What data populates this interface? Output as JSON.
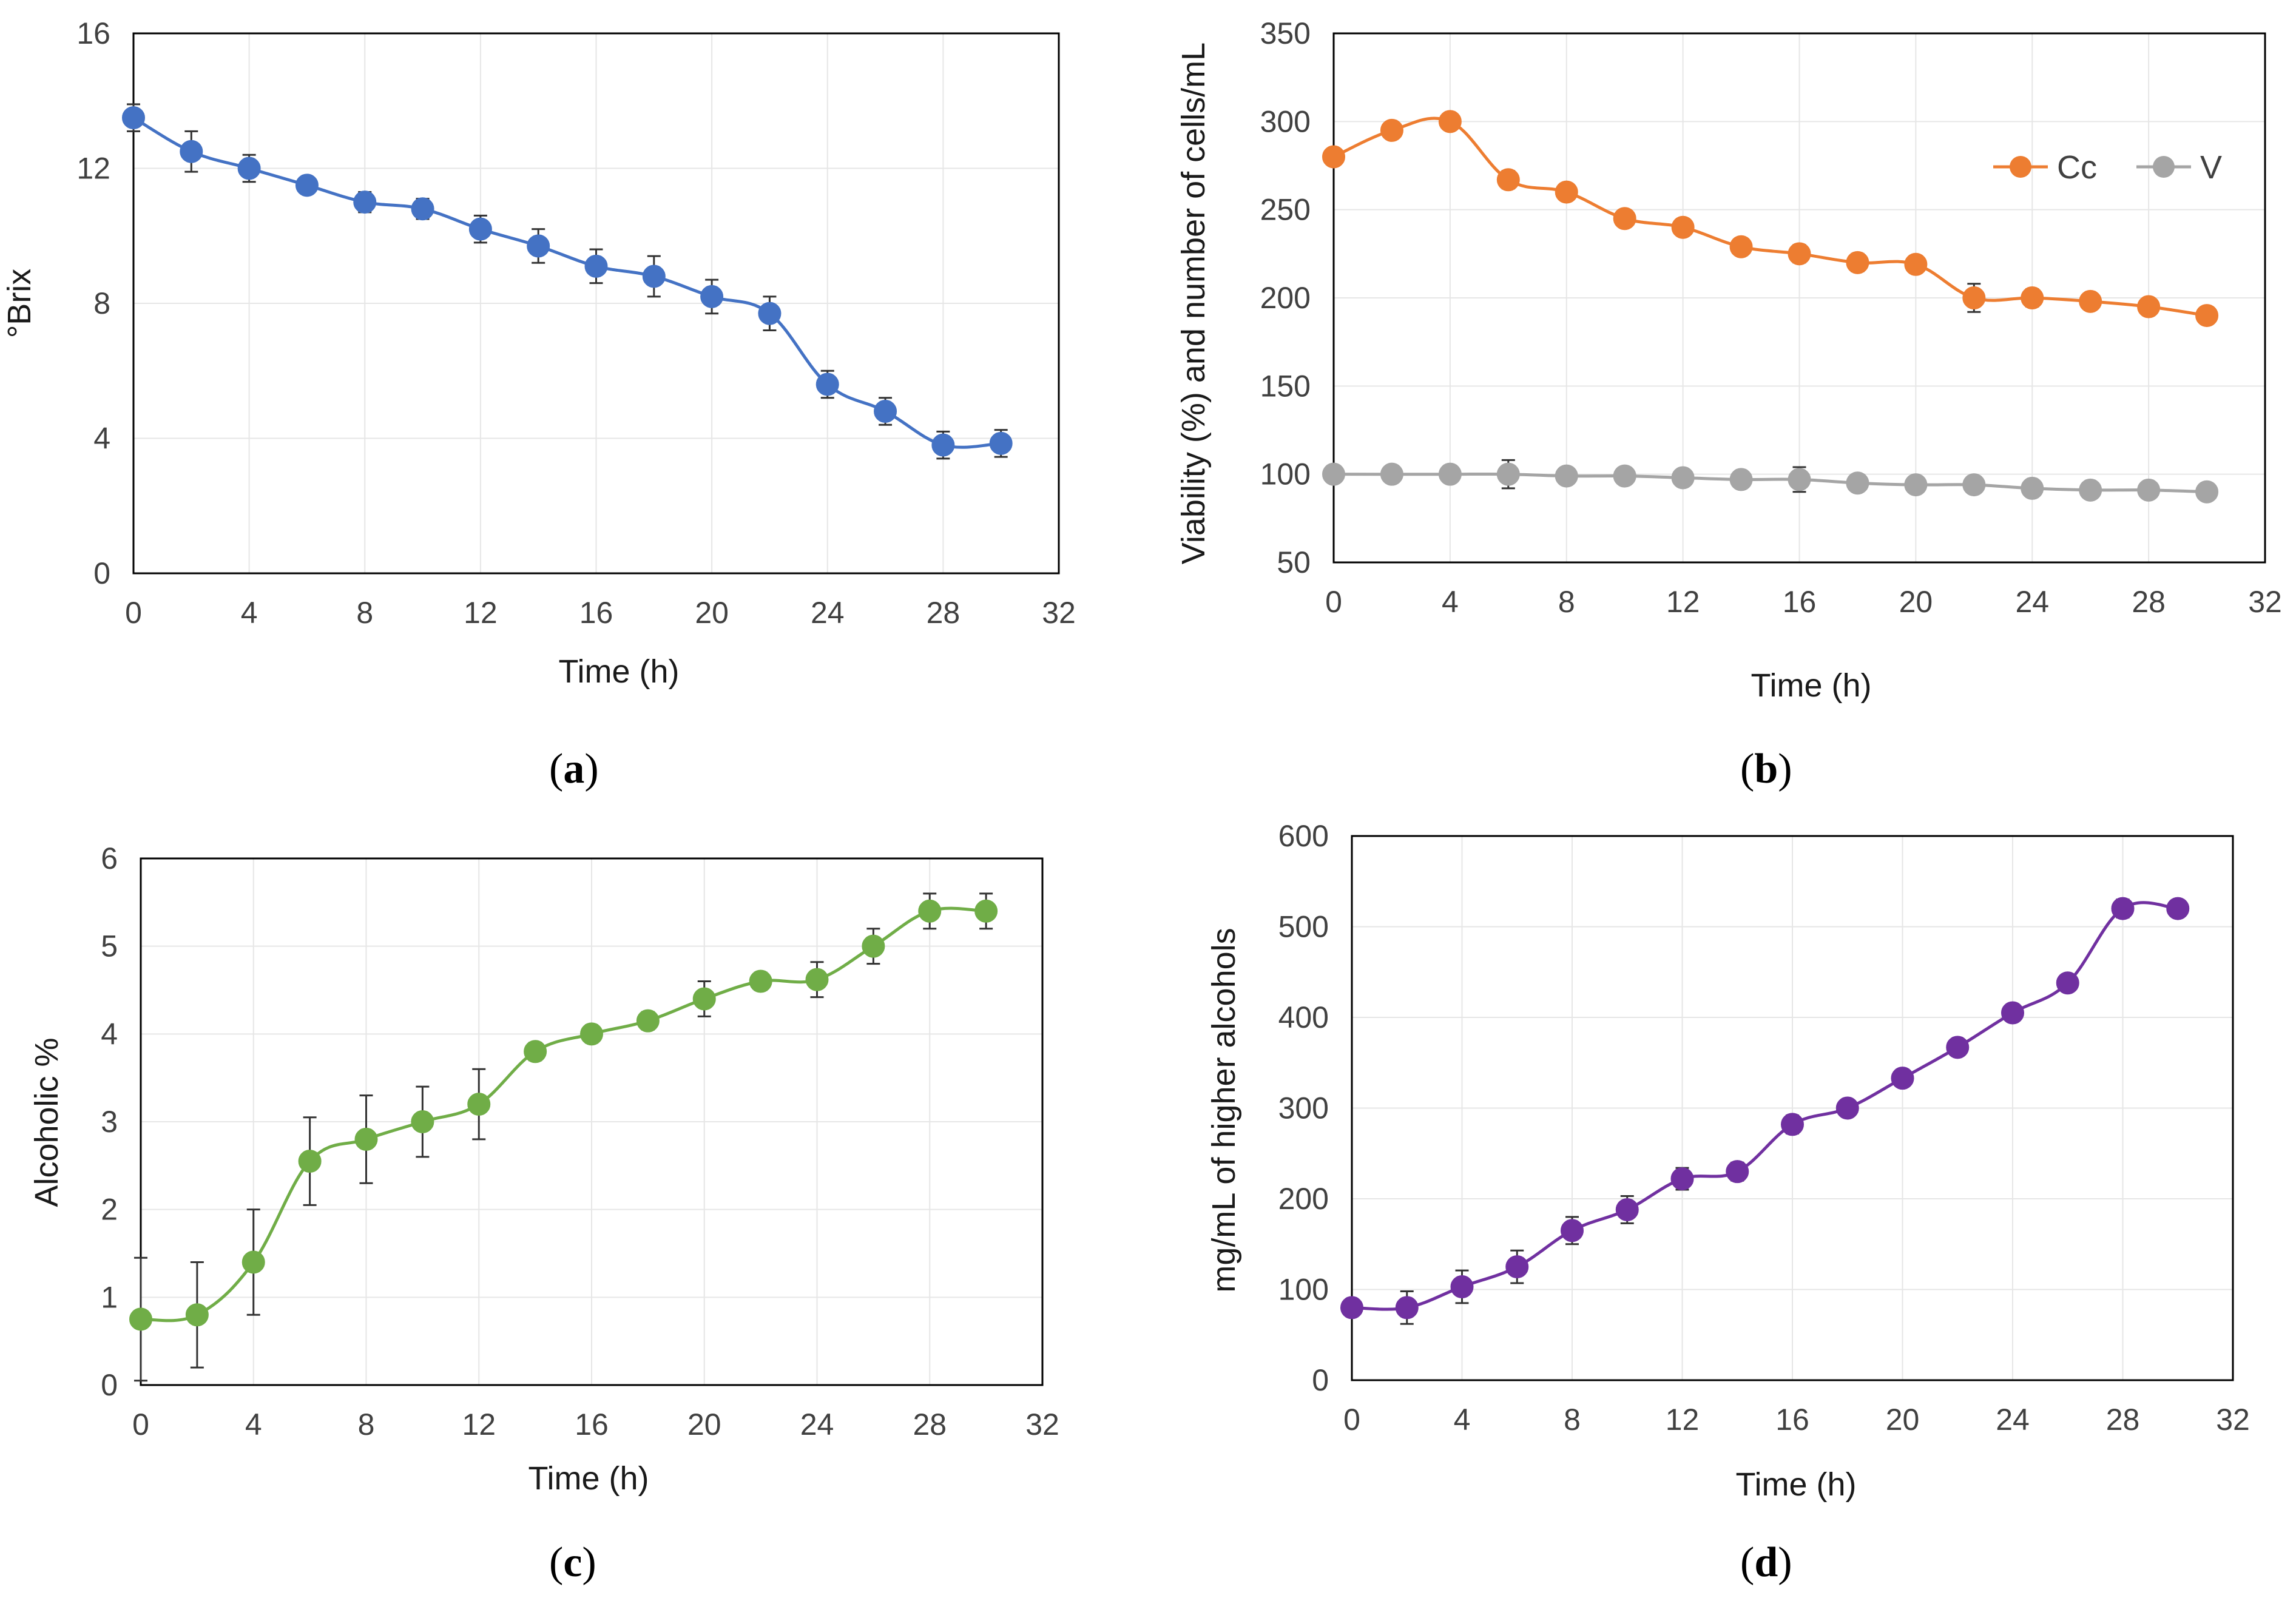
{
  "chart_data": [
    {
      "id": "a",
      "type": "line",
      "caption": "a",
      "xlabel": "Time (h)",
      "ylabel": "°Brix",
      "xlim": [
        0,
        32
      ],
      "ylim": [
        0,
        16
      ],
      "xticks": [
        0,
        4,
        8,
        12,
        16,
        20,
        24,
        28,
        32
      ],
      "yticks": [
        0,
        4,
        8,
        12,
        16
      ],
      "grid": true,
      "series": [
        {
          "name": "°Brix",
          "color": "#4472C4",
          "x": [
            0,
            2,
            4,
            6,
            8,
            10,
            12,
            14,
            16,
            18,
            20,
            22,
            24,
            26,
            28,
            30
          ],
          "y": [
            13.5,
            12.5,
            12.0,
            11.5,
            11.0,
            10.8,
            10.2,
            9.7,
            9.1,
            8.8,
            8.2,
            7.7,
            5.6,
            4.8,
            3.8,
            3.85
          ],
          "err": [
            0.4,
            0.6,
            0.4,
            0.2,
            0.3,
            0.3,
            0.4,
            0.5,
            0.5,
            0.6,
            0.5,
            0.5,
            0.4,
            0.4,
            0.4,
            0.4
          ]
        }
      ]
    },
    {
      "id": "b",
      "type": "line",
      "caption": "b",
      "xlabel": "Time (h)",
      "ylabel": "Viability (%)  and number of cells/mL",
      "xlim": [
        0,
        32
      ],
      "ylim": [
        50,
        350
      ],
      "xticks": [
        0,
        4,
        8,
        12,
        16,
        20,
        24,
        28,
        32
      ],
      "yticks": [
        50,
        100,
        150,
        200,
        250,
        300,
        350
      ],
      "grid": true,
      "legend": "top-right",
      "series": [
        {
          "name": "Cc",
          "color": "#ED7D31",
          "x": [
            0,
            2,
            4,
            6,
            8,
            10,
            12,
            14,
            16,
            18,
            20,
            22,
            24,
            26,
            28,
            30
          ],
          "y": [
            280,
            295,
            300,
            267,
            260,
            245,
            240,
            229,
            225,
            220,
            219,
            200,
            200,
            198,
            195,
            190
          ],
          "err": [
            4,
            4,
            4,
            5,
            4,
            4,
            4,
            4,
            5,
            5,
            4,
            8,
            5,
            4,
            4,
            4
          ]
        },
        {
          "name": "V",
          "color": "#A5A5A5",
          "x": [
            0,
            2,
            4,
            6,
            8,
            10,
            12,
            14,
            16,
            18,
            20,
            22,
            24,
            26,
            28,
            30
          ],
          "y": [
            100,
            100,
            100,
            100,
            99,
            99,
            98,
            97,
            97,
            95,
            94,
            94,
            92,
            91,
            91,
            90
          ],
          "err": [
            3,
            4,
            3,
            8,
            4,
            3,
            3,
            3,
            7,
            3,
            4,
            4,
            3,
            3,
            3,
            3
          ]
        }
      ]
    },
    {
      "id": "c",
      "type": "line",
      "caption": "c",
      "xlabel": "Time (h)",
      "ylabel": "Alcoholic %",
      "xlim": [
        0,
        32
      ],
      "ylim": [
        0,
        6
      ],
      "xticks": [
        0,
        4,
        8,
        12,
        16,
        20,
        24,
        28,
        32
      ],
      "yticks": [
        0,
        1,
        2,
        3,
        4,
        5,
        6
      ],
      "grid": true,
      "series": [
        {
          "name": "Alcoholic %",
          "color": "#70AD47",
          "x": [
            0,
            2,
            4,
            6,
            8,
            10,
            12,
            14,
            16,
            18,
            20,
            22,
            24,
            26,
            28,
            30
          ],
          "y": [
            0.75,
            0.8,
            1.4,
            2.55,
            2.8,
            3.0,
            3.2,
            3.8,
            4.0,
            4.15,
            4.4,
            4.6,
            4.62,
            5.0,
            5.4,
            5.4
          ],
          "err": [
            0.7,
            0.6,
            0.6,
            0.5,
            0.5,
            0.4,
            0.4,
            0.1,
            0.1,
            0.1,
            0.2,
            0.1,
            0.2,
            0.2,
            0.2,
            0.2
          ]
        }
      ]
    },
    {
      "id": "d",
      "type": "line",
      "caption": "d",
      "xlabel": "Time (h)",
      "ylabel": "mg/mL of higher alcohols",
      "xlim": [
        0,
        32
      ],
      "ylim": [
        0,
        600
      ],
      "xticks": [
        0,
        4,
        8,
        12,
        16,
        20,
        24,
        28,
        32
      ],
      "yticks": [
        0,
        100,
        200,
        300,
        400,
        500,
        600
      ],
      "grid": true,
      "series": [
        {
          "name": "mg/mL of higher alcohols",
          "color": "#7030A0",
          "x": [
            0,
            2,
            4,
            6,
            8,
            10,
            12,
            14,
            16,
            18,
            20,
            22,
            24,
            26,
            28,
            30
          ],
          "y": [
            80,
            80,
            103,
            125,
            165,
            188,
            222,
            230,
            282,
            300,
            333,
            367,
            405,
            438,
            520,
            520
          ],
          "err": [
            8,
            18,
            18,
            18,
            15,
            15,
            12,
            10,
            10,
            8,
            8,
            8,
            8,
            8,
            10,
            8
          ]
        }
      ]
    }
  ]
}
